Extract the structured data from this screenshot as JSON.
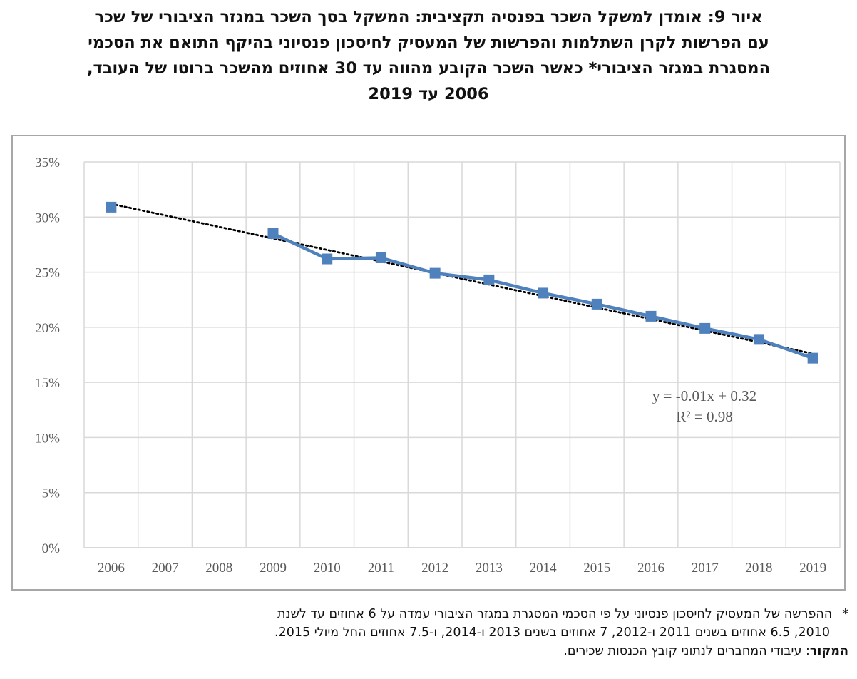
{
  "title": {
    "line1": "איור 9: אומדן למשקל השכר בפנסיה תקציבית: המשקל בסך השכר במגזר הציבורי של שכר",
    "line2": "עם הפרשות לקרן השתלמות והפרשות של המעסיק לחיסכון פנסיוני בהיקף התואם את הסכמי",
    "line3": "המסגרת במגזר הציבורי* כאשר השכר הקובע מהווה עד 30 אחוזים מהשכר ברוטו של העובד,",
    "line4": "2006 עד 2019"
  },
  "chart_data": {
    "type": "line",
    "x": [
      2006,
      2009,
      2010,
      2011,
      2012,
      2013,
      2014,
      2015,
      2016,
      2017,
      2018,
      2019
    ],
    "categories": [
      "2006",
      "2007",
      "2008",
      "2009",
      "2010",
      "2011",
      "2012",
      "2013",
      "2014",
      "2015",
      "2016",
      "2017",
      "2018",
      "2019"
    ],
    "series": [
      {
        "values": [
          30.9,
          28.5,
          26.2,
          26.3,
          24.9,
          24.3,
          23.1,
          22.1,
          21.0,
          19.9,
          18.9,
          17.2
        ]
      }
    ],
    "y_ticks": [
      "0%",
      "5%",
      "10%",
      "15%",
      "20%",
      "25%",
      "30%",
      "35%"
    ],
    "ylim": [
      0,
      35
    ],
    "grid": true,
    "trendline": {
      "style": "dotted",
      "equation": "y = -0.01x + 0.32",
      "r_squared": "R² = 0.98",
      "start_value": 31.2,
      "end_value": 17.6
    },
    "colors": {
      "series": "#4F81BD",
      "trend": "#000000",
      "grid": "#d9d9d9",
      "axis_text": "#595959"
    }
  },
  "footnote": {
    "star": "*",
    "line1": "ההפרשה של המעסיק לחיסכון פנסיוני על פי הסכמי המסגרת במגזר הציבורי עמדה על 6 אחוזים עד לשנת",
    "line2": "2010, 6.5 אחוזים בשנים 2011 ו-2012, 7 אחוזים בשנים 2013 ו-2014, ו-7.5 אחוזים החל מיולי 2015.",
    "source_label": "המקור",
    "source_text": ": עיבודי המחברים לנתוני קובץ הכנסות שכירים."
  }
}
